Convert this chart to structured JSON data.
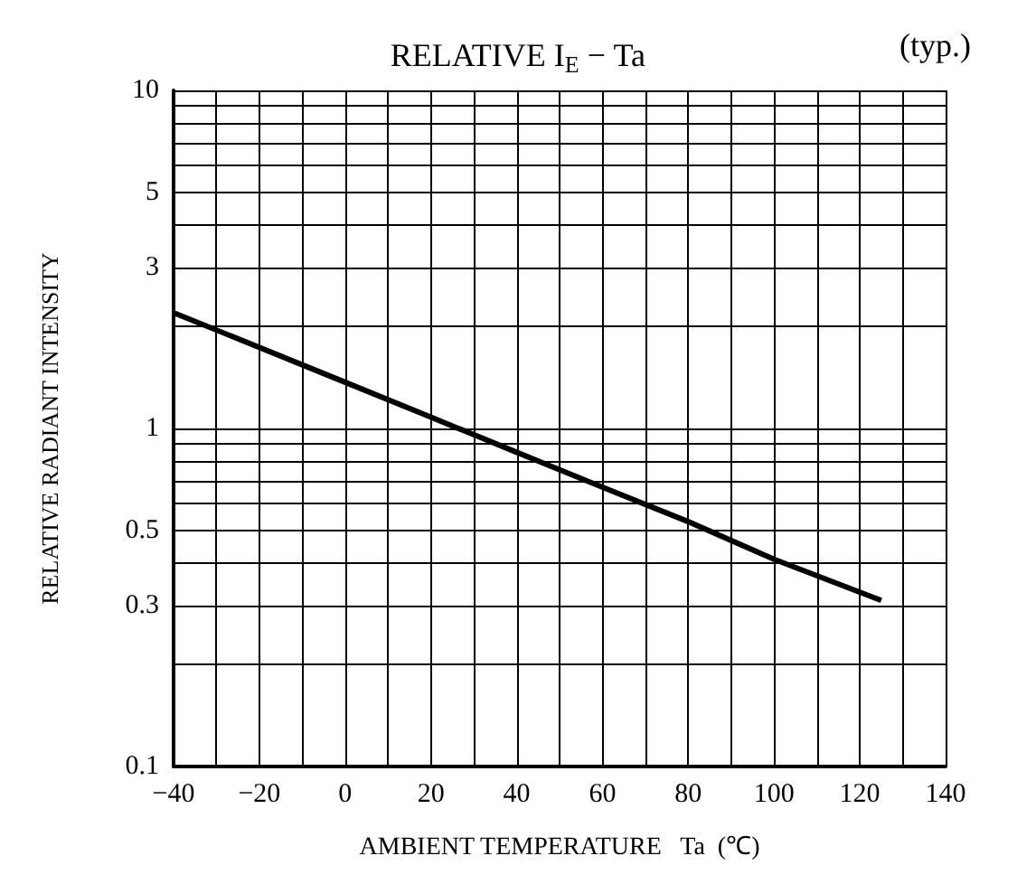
{
  "chart_data": {
    "type": "line",
    "title": "RELATIVE I$_{E}$ − Ta",
    "annotations": [
      "(typ.)"
    ],
    "xlabel": "AMBIENT TEMPERATURE   Ta  (℃)",
    "ylabel": "RELATIVE RADIANT INTENSITY",
    "x": [
      -40,
      0,
      20,
      40,
      60,
      80,
      100,
      125
    ],
    "series": [
      {
        "color": "#000000",
        "values": [
          2.2,
          1.37,
          1.08,
          0.85,
          0.67,
          0.53,
          0.41,
          0.31
        ]
      }
    ],
    "xlim": [
      -40,
      140
    ],
    "xticks": [
      -40,
      -20,
      0,
      20,
      40,
      60,
      80,
      100,
      120,
      140
    ],
    "ylim": [
      0.1,
      10
    ],
    "yticks": [
      0.1,
      0.3,
      0.5,
      1,
      3,
      5,
      10
    ],
    "log": "y",
    "grid": true,
    "marker": "none",
    "line_style": "solid"
  }
}
